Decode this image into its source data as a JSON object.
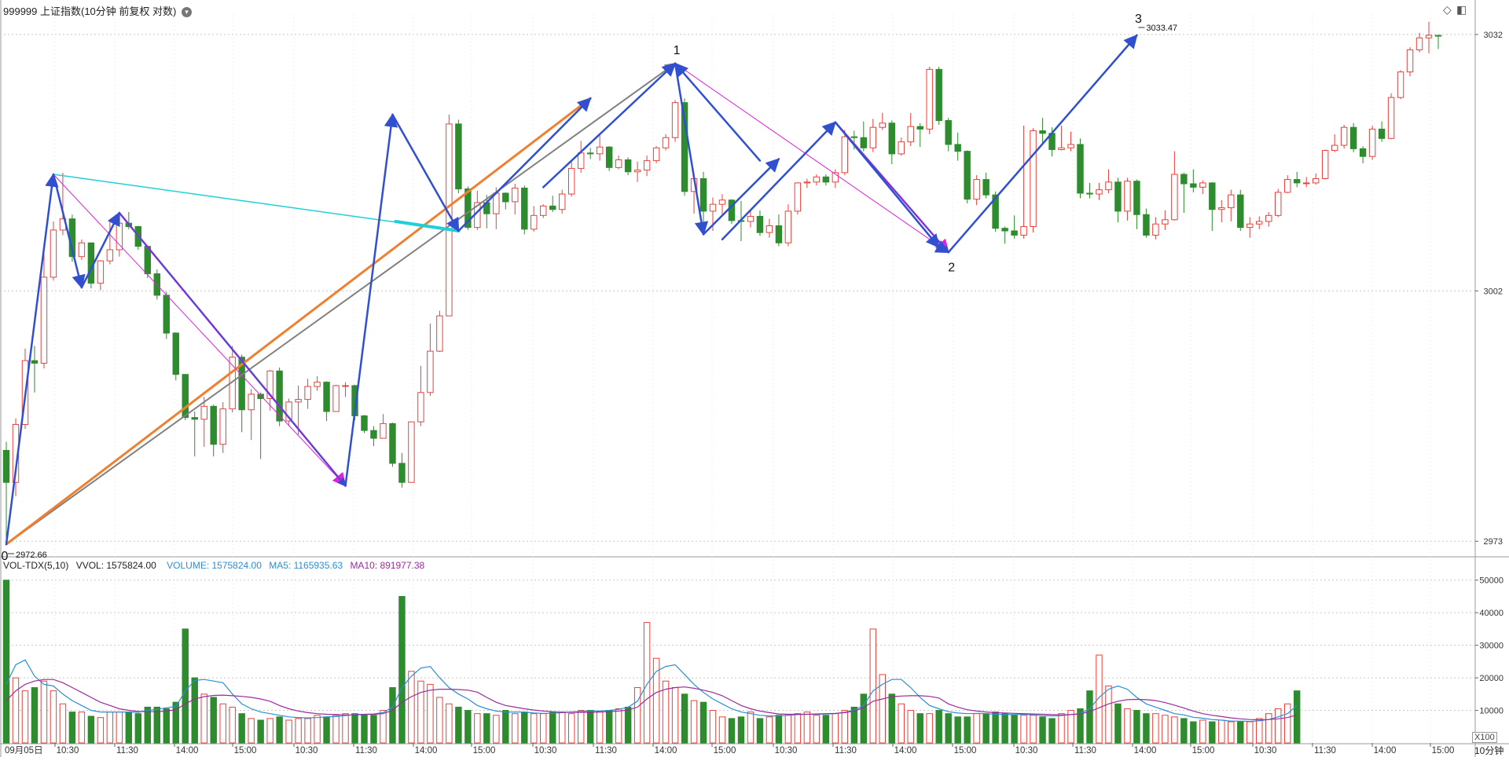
{
  "header": {
    "title": "999999 上证指数(10分钟 前复权 对数)",
    "menu_icon": "chevron-down-icon"
  },
  "toolbar": {
    "diamond_icon": "◇",
    "panel_icon": "◧"
  },
  "price_panel": {
    "y_ticks": [
      "3032",
      "3002",
      "2973"
    ],
    "high_label": "3033.47",
    "low_label": "2972.66",
    "wave_labels": [
      "0",
      "1",
      "2",
      "3"
    ]
  },
  "volume_panel": {
    "indicator": "VOL-TDX(5,10)",
    "vvol": "VVOL: 1575824.00",
    "volume_label": "VOLUME: 1575824.00",
    "ma5_label": "MA5: 1165935.63",
    "ma10_label": "MA10: 891977.38",
    "y_ticks": [
      "50000",
      "40000",
      "30000",
      "20000",
      "10000"
    ],
    "multiplier": "X100"
  },
  "x_axis": {
    "labels": [
      "09月05日",
      "10:30",
      "11:30",
      "14:00",
      "15:00",
      "10:30",
      "11:30",
      "14:00",
      "15:00",
      "10:30",
      "11:30",
      "14:00",
      "15:00",
      "10:30",
      "11:30",
      "14:00",
      "15:00",
      "10:30",
      "11:30",
      "14:00",
      "15:00",
      "10:30",
      "11:30",
      "14:00",
      "15:00"
    ],
    "period_label": "10分钟"
  },
  "colors": {
    "up": "#e8413c",
    "down": "#2e8b2e",
    "ma5": "#2a8fd6",
    "ma10": "#9b2b9b",
    "grid": "#c8c8c8",
    "blue_wave": "#3050d0",
    "magenta": "#e020e0",
    "cyan": "#20d0d8",
    "orange": "#f08030",
    "gray": "#808080"
  },
  "chart_data": {
    "type": "candlestick",
    "ylim": [
      2972.66,
      3033.47
    ],
    "y_scale": "log",
    "candles": [
      [
        2983.5,
        2979.8,
        2984.5,
        2972.7
      ],
      [
        2979.8,
        2986.5,
        2987.2,
        2978.2
      ],
      [
        2986.5,
        2993.9,
        2995.3,
        2986.0
      ],
      [
        2993.9,
        2993.6,
        2995.6,
        2990.2
      ],
      [
        2993.6,
        3003.6,
        3006.4,
        2993.0
      ],
      [
        3003.6,
        3009.1,
        3010.1,
        3003.2
      ],
      [
        3009.1,
        3010.4,
        3015.8,
        3008.5
      ],
      [
        3010.4,
        3006.0,
        3010.9,
        3005.4
      ],
      [
        3006.0,
        3007.6,
        3008.0,
        3005.6
      ],
      [
        3007.6,
        3002.9,
        3006.0,
        3002.3
      ],
      [
        3002.9,
        3005.5,
        3005.6,
        3002.1
      ],
      [
        3005.5,
        3006.8,
        3010.1,
        3005.1
      ],
      [
        3006.8,
        3009.9,
        3010.5,
        3006.0
      ],
      [
        3009.9,
        3009.5,
        3011.2,
        3009.2
      ],
      [
        3009.5,
        3007.2,
        3009.6,
        3006.8
      ],
      [
        3007.2,
        3004.0,
        3007.3,
        3003.5
      ],
      [
        3004.0,
        3001.5,
        3004.5,
        3001.0
      ],
      [
        3001.5,
        2997.1,
        3001.9,
        2996.4
      ],
      [
        2997.1,
        2992.3,
        2997.2,
        2991.6
      ],
      [
        2992.3,
        2987.3,
        2992.1,
        2987.0
      ],
      [
        2987.3,
        2987.1,
        2988.0,
        2982.8
      ],
      [
        2987.1,
        2988.6,
        2989.7,
        2983.9
      ],
      [
        2988.6,
        2984.2,
        2988.8,
        2982.8
      ],
      [
        2984.2,
        2988.3,
        2989.1,
        2983.2
      ],
      [
        2988.3,
        2994.3,
        2995.6,
        2987.9
      ],
      [
        2994.3,
        2988.2,
        2994.6,
        2985.6
      ],
      [
        2988.2,
        2990.0,
        2990.6,
        2984.7
      ],
      [
        2990.0,
        2989.5,
        2990.2,
        2982.5
      ],
      [
        2989.5,
        2992.7,
        2992.8,
        2988.1
      ],
      [
        2992.7,
        2986.9,
        2993.1,
        2986.3
      ],
      [
        2986.9,
        2989.1,
        2989.5,
        2986.3
      ],
      [
        2989.1,
        2989.4,
        2991.0,
        2985.3
      ],
      [
        2989.4,
        2990.9,
        2991.8,
        2988.3
      ],
      [
        2990.9,
        2991.4,
        2992.1,
        2990.4
      ],
      [
        2991.4,
        2988.0,
        2991.5,
        2986.9
      ],
      [
        2988.0,
        2991.0,
        2991.1,
        2989.3
      ],
      [
        2991.0,
        2991.0,
        2991.4,
        2989.7
      ],
      [
        2991.0,
        2987.5,
        2991.1,
        2987.0
      ],
      [
        2987.5,
        2985.8,
        2987.6,
        2985.5
      ],
      [
        2985.8,
        2984.9,
        2986.3,
        2984.0
      ],
      [
        2984.9,
        2986.6,
        2987.7,
        2985.5
      ],
      [
        2986.6,
        2982.0,
        2986.7,
        2981.6
      ],
      [
        2982.0,
        2979.8,
        2983.2,
        2979.2
      ],
      [
        2979.8,
        2986.8,
        2986.8,
        2979.9
      ],
      [
        2986.8,
        2990.2,
        2993.3,
        2986.3
      ],
      [
        2990.2,
        2995.0,
        2998.2,
        2989.8
      ],
      [
        2995.0,
        2999.1,
        2999.7,
        2994.9
      ],
      [
        2999.1,
        3021.5,
        3022.6,
        2999.5
      ],
      [
        3021.5,
        3013.9,
        3022.0,
        3013.4
      ],
      [
        3013.9,
        3009.4,
        3014.2,
        3009.1
      ],
      [
        3009.4,
        3012.3,
        3013.7,
        3009.1
      ],
      [
        3012.3,
        3011.0,
        3013.2,
        3009.3
      ],
      [
        3011.0,
        3013.4,
        3014.1,
        3009.2
      ],
      [
        3013.4,
        3012.4,
        3013.5,
        3011.5
      ],
      [
        3012.4,
        3014.0,
        3014.5,
        3010.9
      ],
      [
        3014.0,
        3009.2,
        3014.3,
        3008.6
      ],
      [
        3009.2,
        3010.8,
        3011.9,
        3008.9
      ],
      [
        3010.8,
        3011.9,
        3012.1,
        3010.5
      ],
      [
        3011.9,
        3011.5,
        3013.1,
        3011.2
      ],
      [
        3011.5,
        3013.3,
        3013.8,
        3011.0
      ],
      [
        3013.3,
        3016.3,
        3017.1,
        3013.0
      ],
      [
        3016.3,
        3018.1,
        3019.5,
        3015.8
      ],
      [
        3018.1,
        3018.0,
        3018.7,
        3017.4
      ],
      [
        3018.0,
        3018.8,
        3020.3,
        3017.2
      ],
      [
        3018.8,
        3016.4,
        3018.9,
        3016.0
      ],
      [
        3016.4,
        3017.3,
        3017.8,
        3016.2
      ],
      [
        3017.3,
        3015.9,
        3017.6,
        3015.5
      ],
      [
        3015.9,
        3016.1,
        3017.1,
        3014.7
      ],
      [
        3016.1,
        3017.2,
        3017.8,
        3015.4
      ],
      [
        3017.2,
        3018.7,
        3018.9,
        3016.9
      ],
      [
        3018.7,
        3019.9,
        3020.3,
        3018.4
      ],
      [
        3019.9,
        3024.0,
        3024.3,
        3019.4
      ],
      [
        3024.0,
        3013.6,
        3024.5,
        3013.1
      ],
      [
        3013.6,
        3015.1,
        3015.5,
        3011.0
      ],
      [
        3015.1,
        3011.3,
        3015.9,
        3009.5
      ],
      [
        3011.3,
        3012.1,
        3012.9,
        3009.0
      ],
      [
        3012.1,
        3012.6,
        3013.3,
        3010.9
      ],
      [
        3012.6,
        3010.2,
        3012.7,
        3009.8
      ],
      [
        3010.2,
        3010.1,
        3012.5,
        3007.8
      ],
      [
        3010.1,
        3010.7,
        3011.5,
        3009.4
      ],
      [
        3010.7,
        3008.8,
        3011.4,
        3008.4
      ],
      [
        3008.8,
        3009.6,
        3010.4,
        3008.2
      ],
      [
        3009.6,
        3007.6,
        3010.9,
        3007.2
      ],
      [
        3007.6,
        3011.3,
        3012.1,
        3007.2
      ],
      [
        3011.3,
        3014.6,
        3014.7,
        3010.9
      ],
      [
        3014.6,
        3014.7,
        3015.1,
        3014.0
      ],
      [
        3014.7,
        3015.3,
        3015.6,
        3014.3
      ],
      [
        3015.3,
        3014.7,
        3015.6,
        3014.3
      ],
      [
        3014.7,
        3015.8,
        3016.2,
        3014.0
      ],
      [
        3015.8,
        3020.0,
        3020.8,
        3015.5
      ],
      [
        3020.0,
        3019.9,
        3020.7,
        3018.5
      ],
      [
        3019.9,
        3018.7,
        3021.8,
        3018.3
      ],
      [
        3018.7,
        3021.1,
        3022.1,
        3018.2
      ],
      [
        3021.1,
        3021.6,
        3022.8,
        3020.8
      ],
      [
        3021.6,
        3018.0,
        3021.9,
        3016.8
      ],
      [
        3018.0,
        3019.4,
        3019.9,
        3017.8
      ],
      [
        3019.4,
        3021.2,
        3022.8,
        3018.9
      ],
      [
        3021.2,
        3020.9,
        3021.6,
        3018.8
      ],
      [
        3020.9,
        3027.9,
        3028.2,
        3020.3
      ],
      [
        3027.9,
        3021.9,
        3028.2,
        3021.4
      ],
      [
        3021.9,
        3019.1,
        3022.2,
        3018.3
      ],
      [
        3019.1,
        3018.3,
        3020.5,
        3017.2
      ],
      [
        3018.3,
        3012.7,
        3018.4,
        3012.2
      ],
      [
        3012.7,
        3015.0,
        3015.5,
        3012.0
      ],
      [
        3015.0,
        3013.2,
        3015.8,
        3012.8
      ],
      [
        3013.2,
        3009.3,
        3013.6,
        3008.9
      ],
      [
        3009.3,
        3009.0,
        3009.5,
        3007.5
      ],
      [
        3009.0,
        3008.5,
        3010.8,
        3008.1
      ],
      [
        3008.5,
        3009.5,
        3021.3,
        3008.1
      ],
      [
        3009.5,
        3020.7,
        3021.0,
        3008.8
      ],
      [
        3020.7,
        3020.4,
        3022.2,
        3019.1
      ],
      [
        3020.4,
        3018.5,
        3021.1,
        3017.7
      ],
      [
        3018.5,
        3018.7,
        3021.3,
        3018.4
      ],
      [
        3018.7,
        3019.1,
        3020.6,
        3018.3
      ],
      [
        3019.1,
        3013.4,
        3019.8,
        3012.8
      ],
      [
        3013.4,
        3013.3,
        3014.6,
        3012.8
      ],
      [
        3013.3,
        3013.8,
        3014.6,
        3012.6
      ],
      [
        3013.8,
        3014.7,
        3016.2,
        3013.4
      ],
      [
        3014.7,
        3011.3,
        3015.2,
        3010.0
      ],
      [
        3011.3,
        3014.8,
        3015.2,
        3010.2
      ],
      [
        3014.8,
        3010.9,
        3015.0,
        3009.2
      ],
      [
        3010.9,
        3008.5,
        3011.6,
        3008.2
      ],
      [
        3008.5,
        3009.8,
        3010.6,
        3008.0
      ],
      [
        3009.8,
        3010.3,
        3011.4,
        3009.1
      ],
      [
        3010.3,
        3015.6,
        3018.3,
        3010.2
      ],
      [
        3015.6,
        3014.5,
        3015.8,
        3011.1
      ],
      [
        3014.5,
        3014.1,
        3016.2,
        3013.5
      ],
      [
        3014.1,
        3014.6,
        3014.9,
        3013.3
      ],
      [
        3014.6,
        3011.5,
        3014.7,
        3009.0
      ],
      [
        3011.5,
        3011.7,
        3012.6,
        3010.0
      ],
      [
        3011.7,
        3013.2,
        3013.8,
        3010.1
      ],
      [
        3013.2,
        3009.4,
        3013.8,
        3009.0
      ],
      [
        3009.4,
        3009.8,
        3010.6,
        3008.2
      ],
      [
        3009.8,
        3010.1,
        3010.7,
        3009.2
      ],
      [
        3010.1,
        3010.8,
        3011.2,
        3009.5
      ],
      [
        3010.8,
        3013.5,
        3013.9,
        3010.6
      ],
      [
        3013.5,
        3015.0,
        3015.5,
        3013.4
      ],
      [
        3015.0,
        3014.6,
        3015.9,
        3014.1
      ],
      [
        3014.6,
        3014.6,
        3015.3,
        3014.1
      ],
      [
        3014.6,
        3015.1,
        3015.7,
        3014.4
      ],
      [
        3015.1,
        3018.4,
        3018.5,
        3015.0
      ],
      [
        3018.4,
        3019.0,
        3020.3,
        3018.2
      ],
      [
        3019.0,
        3021.1,
        3021.4,
        3018.6
      ],
      [
        3021.1,
        3018.6,
        3021.6,
        3018.2
      ],
      [
        3018.6,
        3017.7,
        3018.9,
        3016.9
      ],
      [
        3017.7,
        3020.9,
        3021.3,
        3017.3
      ],
      [
        3020.9,
        3019.8,
        3021.8,
        3019.4
      ],
      [
        3019.8,
        3024.6,
        3025.1,
        3019.7
      ],
      [
        3024.6,
        3027.6,
        3027.8,
        3024.4
      ],
      [
        3027.6,
        3030.2,
        3030.5,
        3027.1
      ],
      [
        3030.2,
        3031.6,
        3032.2,
        3029.9
      ],
      [
        3031.6,
        3031.9,
        3033.5,
        3029.8
      ],
      [
        3031.9,
        3031.8,
        3031.9,
        3030.3
      ]
    ],
    "volume": [
      50000,
      20000,
      16000,
      17000,
      19000,
      16000,
      12000,
      9500,
      9500,
      8200,
      7800,
      9500,
      9500,
      9500,
      9000,
      11000,
      11000,
      10500,
      12500,
      35000,
      20000,
      15000,
      14000,
      12000,
      11000,
      9000,
      7500,
      7000,
      7500,
      8000,
      7000,
      7500,
      7500,
      8500,
      8000,
      8500,
      9000,
      9000,
      8500,
      8500,
      10000,
      17000,
      45000,
      22000,
      19000,
      18000,
      14000,
      12000,
      11000,
      10000,
      9000,
      9000,
      8500,
      10000,
      9000,
      9500,
      9000,
      9000,
      9500,
      9500,
      9000,
      10000,
      10000,
      9500,
      10000,
      10500,
      11000,
      17000,
      37000,
      26000,
      19000,
      17000,
      15000,
      13000,
      12500,
      10000,
      8000,
      7500,
      8000,
      9500,
      7500,
      8000,
      8500,
      8500,
      9000,
      9500,
      8500,
      8500,
      9000,
      10000,
      11000,
      15000,
      35000,
      21000,
      15000,
      12000,
      10000,
      9000,
      9000,
      10000,
      9000,
      8000,
      8000,
      9000,
      9000,
      9500,
      9000,
      8500,
      8500,
      8500,
      8000,
      7500,
      9000,
      10000,
      10500,
      16000,
      27000,
      17500,
      12000,
      10500,
      10000,
      9000,
      9000,
      8500,
      8000,
      7500,
      6500,
      7000,
      6500,
      7000,
      6500,
      6500,
      6500,
      7500,
      9000,
      10500,
      12000,
      16000
    ],
    "ma5": [
      18000,
      24000,
      25500,
      20500,
      18000,
      17500,
      15000,
      13000,
      11500,
      10000,
      9500,
      9500,
      9500,
      9500,
      9400,
      10000,
      10300,
      10800,
      11200,
      16000,
      19200,
      19500,
      19000,
      18500,
      15000,
      12000,
      10500,
      9500,
      9000,
      8500,
      8000,
      7800,
      7700,
      7800,
      8000,
      8100,
      8400,
      8700,
      8800,
      8900,
      9300,
      11000,
      17000,
      20500,
      23000,
      23500,
      20000,
      17000,
      15000,
      13500,
      11500,
      10500,
      9800,
      9500,
      9500,
      9500,
      9200,
      9100,
      9100,
      9300,
      9500,
      9700,
      9800,
      9800,
      10000,
      10300,
      11000,
      12800,
      18000,
      22000,
      23500,
      24000,
      21000,
      18000,
      15500,
      13500,
      12000,
      10500,
      9500,
      9000,
      8500,
      8300,
      8300,
      8500,
      8700,
      8800,
      8800,
      8900,
      9000,
      9400,
      10000,
      11500,
      16000,
      18000,
      19500,
      19500,
      17000,
      14000,
      11500,
      10500,
      9600,
      9200,
      9000,
      9100,
      9000,
      8800,
      8700,
      8700,
      8800,
      8600,
      8400,
      8300,
      8400,
      8700,
      9000,
      10500,
      14000,
      16500,
      17500,
      16500,
      14000,
      12000,
      11000,
      10000,
      9000,
      8600,
      7900,
      7600,
      7200,
      7000,
      6700,
      6700,
      6600,
      6800,
      7200,
      8000,
      9000,
      11500
    ],
    "ma10": [
      13000,
      16000,
      18000,
      19000,
      19500,
      19500,
      18500,
      17000,
      15500,
      14000,
      12500,
      11500,
      10500,
      10000,
      9700,
      9600,
      9600,
      9800,
      10200,
      12000,
      13500,
      14200,
      14600,
      14700,
      14500,
      14300,
      14000,
      13500,
      12800,
      11500,
      10500,
      9800,
      9300,
      9000,
      8800,
      8700,
      8600,
      8600,
      8700,
      8800,
      9000,
      10000,
      12500,
      14200,
      15500,
      16200,
      16500,
      16500,
      16400,
      16200,
      15600,
      14000,
      12500,
      11500,
      11000,
      10500,
      10100,
      9800,
      9600,
      9400,
      9400,
      9400,
      9400,
      9500,
      9600,
      9800,
      10100,
      11000,
      13500,
      15500,
      16500,
      17000,
      17200,
      16800,
      16200,
      15500,
      14500,
      13000,
      11500,
      10500,
      9800,
      9300,
      8900,
      8800,
      8800,
      8800,
      8900,
      9000,
      9100,
      9300,
      9800,
      10800,
      12800,
      13500,
      14200,
      14400,
      14500,
      14500,
      14300,
      13800,
      12000,
      11000,
      10200,
      9800,
      9500,
      9300,
      9200,
      9100,
      9000,
      8900,
      8800,
      8700,
      8600,
      8700,
      8900,
      9600,
      10800,
      12000,
      12800,
      13300,
      13400,
      13300,
      13000,
      12400,
      11600,
      10700,
      9800,
      9000,
      8500,
      8100,
      7700,
      7400,
      7200,
      7100,
      7200,
      7400,
      7800,
      8600
    ]
  }
}
